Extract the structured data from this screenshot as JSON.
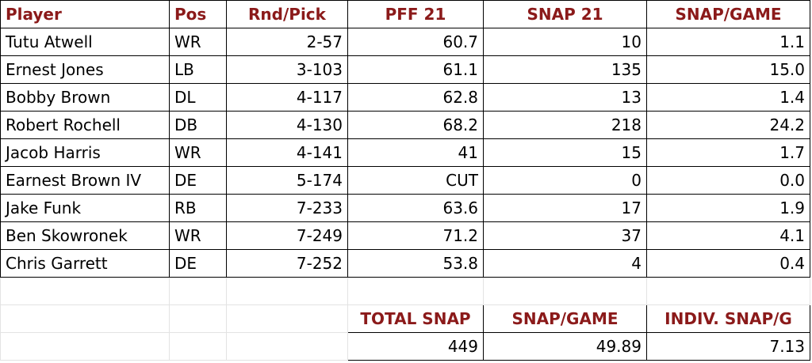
{
  "headers": [
    "Player",
    "Pos",
    "Rnd/Pick",
    "PFF 21",
    "SNAP 21",
    "SNAP/GAME"
  ],
  "rows": [
    [
      "Tutu Atwell",
      "WR",
      "2-57",
      "60.7",
      "10",
      "1.1"
    ],
    [
      "Ernest Jones",
      "LB",
      "3-103",
      "61.1",
      "135",
      "15.0"
    ],
    [
      "Bobby Brown",
      "DL",
      "4-117",
      "62.8",
      "13",
      "1.4"
    ],
    [
      "Robert Rochell",
      "DB",
      "4-130",
      "68.2",
      "218",
      "24.2"
    ],
    [
      "Jacob Harris",
      "WR",
      "4-141",
      "41",
      "15",
      "1.7"
    ],
    [
      "Earnest Brown IV",
      "DE",
      "5-174",
      "CUT",
      "0",
      "0.0"
    ],
    [
      "Jake Funk",
      "RB",
      "7-233",
      "63.6",
      "17",
      "1.9"
    ],
    [
      "Ben Skowronek",
      "WR",
      "7-249",
      "71.2",
      "37",
      "4.1"
    ],
    [
      "Chris Garrett",
      "DE",
      "7-252",
      "53.8",
      "4",
      "0.4"
    ]
  ],
  "summary": {
    "headers": [
      "TOTAL SNAP",
      "SNAP/GAME",
      "INDIV. SNAP/G"
    ],
    "values": [
      "449",
      "49.89",
      "7.13"
    ]
  },
  "colors": {
    "header_text": "#8b1a1a",
    "border": "#000000",
    "gridline": "#e3e3e3"
  }
}
